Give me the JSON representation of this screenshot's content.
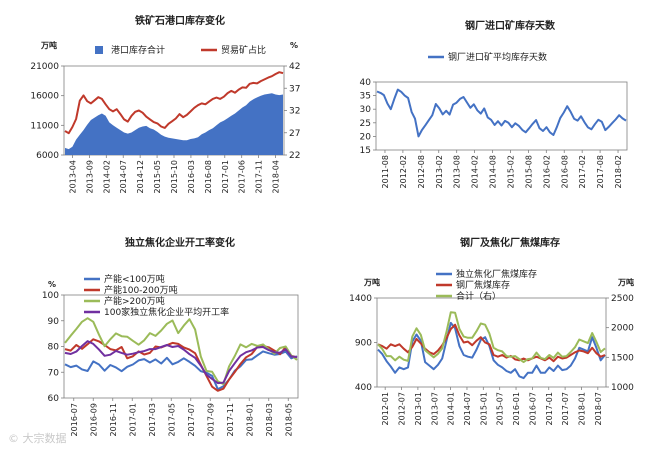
{
  "chart_data": [
    {
      "type": "area",
      "title": "铁矿石港口库存变化",
      "left_unit": "万吨",
      "right_unit": "%",
      "ylim": [
        6000,
        21000
      ],
      "y2lim": [
        22,
        42
      ],
      "yticks": [
        "21000",
        "16000",
        "11000",
        "6000"
      ],
      "y2ticks": [
        "42",
        "37",
        "32",
        "27",
        "22"
      ],
      "xticks": [
        "2013-04",
        "2013-09",
        "2014-02",
        "2014-07",
        "2014-12",
        "2015-05",
        "2015-10",
        "2016-03",
        "2016-08",
        "2017-01",
        "2017-06",
        "2017-11",
        "2018-04"
      ],
      "series": [
        {
          "name": "港口库存合计",
          "type": "area",
          "color": "#4472c4",
          "values": [
            7200,
            7000,
            7400,
            8600,
            9400,
            10200,
            11100,
            11900,
            12300,
            12700,
            13000,
            12600,
            11500,
            11000,
            10600,
            10200,
            9800,
            9600,
            9800,
            10200,
            10600,
            10800,
            10900,
            10500,
            10300,
            9900,
            9400,
            9100,
            8900,
            8800,
            8700,
            8600,
            8500,
            8500,
            8700,
            8800,
            9000,
            9500,
            9800,
            10200,
            10500,
            11000,
            11500,
            11800,
            12200,
            12600,
            13000,
            13500,
            14000,
            14400,
            15000,
            15400,
            15700,
            16000,
            16200,
            16300,
            16400,
            16200,
            16100,
            16200
          ]
        },
        {
          "name": "贸易矿占比",
          "type": "line",
          "color": "#c0392b",
          "axis": "right",
          "values": [
            27.4,
            26.9,
            28.3,
            30.1,
            34.2,
            35.4,
            34.1,
            33.6,
            34.3,
            35.0,
            34.6,
            33.4,
            32.3,
            31.8,
            32.3,
            31.2,
            30.0,
            29.5,
            30.8,
            31.7,
            32.0,
            31.5,
            30.6,
            30.0,
            29.4,
            29.1,
            28.4,
            28.1,
            29.0,
            29.6,
            30.2,
            31.2,
            30.5,
            31.0,
            31.8,
            32.6,
            33.2,
            33.6,
            33.4,
            34.0,
            34.6,
            34.9,
            34.6,
            35.1,
            35.9,
            36.4,
            36.0,
            36.7,
            37.2,
            37.1,
            38.0,
            38.2,
            38.1,
            38.6,
            39.0,
            39.4,
            39.7,
            40.2,
            40.6,
            40.4
          ]
        }
      ]
    },
    {
      "type": "line",
      "title": "钢厂进口矿库存天数",
      "ylim": [
        15,
        40
      ],
      "yticks": [
        "40",
        "35",
        "30",
        "25",
        "20",
        "15"
      ],
      "xticks": [
        "2011-08",
        "2012-02",
        "2012-08",
        "2013-02",
        "2013-08",
        "2014-02",
        "2014-08",
        "2015-02",
        "2015-08",
        "2016-02",
        "2016-08",
        "2017-02",
        "2017-08",
        "2018-02"
      ],
      "series": [
        {
          "name": "钢厂进口矿平均库存天数",
          "color": "#4472c4",
          "values": [
            36.5,
            36.0,
            35.2,
            32.1,
            30.0,
            33.8,
            37.2,
            36.4,
            35.0,
            34.1,
            29.0,
            26.5,
            20.0,
            22.4,
            24.1,
            26.0,
            27.8,
            31.9,
            30.3,
            28.1,
            29.4,
            28.0,
            31.7,
            32.4,
            33.8,
            34.5,
            32.5,
            30.5,
            31.8,
            29.6,
            28.4,
            30.3,
            27.0,
            26.1,
            24.2,
            25.6,
            24.0,
            25.7,
            25.0,
            23.4,
            24.8,
            23.9,
            22.4,
            21.5,
            23.0,
            24.6,
            26.0,
            23.0,
            22.0,
            23.4,
            21.5,
            20.5,
            23.4,
            26.8,
            28.8,
            31.1,
            29.0,
            26.5,
            25.8,
            27.4,
            25.2,
            23.3,
            22.6,
            24.5,
            26.1,
            25.4,
            22.3,
            23.5,
            24.9,
            26.2,
            27.8,
            26.6,
            25.8
          ]
        }
      ]
    },
    {
      "type": "line",
      "title": "独立焦化企业开工率变化",
      "left_unit": "%",
      "ylim": [
        60,
        100
      ],
      "yticks": [
        "100",
        "90",
        "80",
        "70",
        "60"
      ],
      "xticks": [
        "2016-07",
        "2016-09",
        "2016-11",
        "2017-01",
        "2017-03",
        "2017-05",
        "2017-07",
        "2017-09",
        "2017-11",
        "2018-01",
        "2018-03",
        "2018-05"
      ],
      "series": [
        {
          "name": "产能<100万吨",
          "color": "#4472c4",
          "values": [
            73.1,
            72.0,
            72.6,
            71.1,
            70.5,
            74.2,
            73.0,
            70.6,
            72.8,
            71.9,
            70.4,
            72.1,
            73.0,
            74.6,
            75.1,
            73.8,
            75.0,
            73.4,
            75.6,
            73.1,
            74.0,
            75.4,
            74.0,
            72.5,
            70.4,
            69.8,
            68.6,
            63.4,
            64.6,
            67.2,
            70.6,
            72.3,
            74.8,
            75.0,
            76.6,
            78.1,
            77.4,
            76.8,
            77.1,
            78.0,
            75.4,
            76.2
          ]
        },
        {
          "name": "产能100-200万吨",
          "color": "#c0392b",
          "values": [
            79.0,
            78.4,
            80.6,
            79.1,
            80.9,
            82.8,
            82.0,
            80.6,
            79.0,
            78.5,
            79.8,
            75.4,
            76.2,
            78.1,
            76.9,
            77.5,
            80.0,
            79.6,
            80.5,
            81.4,
            81.0,
            79.6,
            78.8,
            77.4,
            72.9,
            68.6,
            64.4,
            62.8,
            63.6,
            67.2,
            70.1,
            73.2,
            75.8,
            77.1,
            79.9,
            80.2,
            79.7,
            78.4,
            77.0,
            79.8,
            76.4,
            75.8
          ]
        },
        {
          "name": "产能>200万吨",
          "color": "#9bbb59",
          "values": [
            81.4,
            84.2,
            86.8,
            89.6,
            91.0,
            89.6,
            84.6,
            80.1,
            82.8,
            85.1,
            84.0,
            83.8,
            82.2,
            80.7,
            82.4,
            85.2,
            84.1,
            86.2,
            88.8,
            90.1,
            85.2,
            88.1,
            90.6,
            86.6,
            76.1,
            70.5,
            70.2,
            66.5,
            65.4,
            72.3,
            76.3,
            80.8,
            79.7,
            81.0,
            80.2,
            80.8,
            79.0,
            77.2,
            79.4,
            80.0,
            76.5,
            74.8
          ]
        },
        {
          "name": "100家独立焦化企业平均开工率",
          "color": "#7030a0",
          "values": [
            77.5,
            77.1,
            78.0,
            80.2,
            82.1,
            81.0,
            78.8,
            76.4,
            76.8,
            78.3,
            77.5,
            76.8,
            77.2,
            77.8,
            78.2,
            79.0,
            79.0,
            79.8,
            80.6,
            79.8,
            80.2,
            78.8,
            77.0,
            75.6,
            72.6,
            69.0,
            67.4,
            65.8,
            66.0,
            70.5,
            73.5,
            76.4,
            77.8,
            78.5,
            79.6,
            79.8,
            78.6,
            77.8,
            77.6,
            78.9,
            76.1,
            75.9
          ]
        }
      ]
    },
    {
      "type": "line",
      "title": "钢厂及焦化厂焦煤库存",
      "left_unit": "万吨",
      "right_unit": "万吨",
      "ylim": [
        400,
        1400
      ],
      "y2lim": [
        1000,
        2500
      ],
      "yticks": [
        "1400",
        "900",
        "400"
      ],
      "y2ticks": [
        "2500",
        "2000",
        "1500",
        "1000"
      ],
      "xticks": [
        "2012-01",
        "2012-07",
        "2013-01",
        "2013-07",
        "2014-01",
        "2014-07",
        "2015-01",
        "2015-07",
        "2016-01",
        "2016-07",
        "2017-01",
        "2017-07",
        "2018-01",
        "2018-07"
      ],
      "series": [
        {
          "name": "独立焦化厂焦煤库存",
          "color": "#4472c4",
          "values": [
            820,
            770,
            690,
            630,
            560,
            620,
            600,
            620,
            910,
            990,
            920,
            680,
            640,
            600,
            650,
            720,
            920,
            1120,
            1060,
            860,
            760,
            740,
            730,
            820,
            930,
            960,
            860,
            700,
            650,
            620,
            580,
            560,
            600,
            520,
            500,
            560,
            560,
            640,
            560,
            560,
            620,
            580,
            640,
            590,
            600,
            640,
            720,
            840,
            820,
            800,
            960,
            840,
            700,
            760
          ]
        },
        {
          "name": "钢厂焦煤库存",
          "color": "#c0392b",
          "values": [
            880,
            860,
            830,
            880,
            860,
            880,
            830,
            790,
            850,
            940,
            890,
            830,
            790,
            770,
            810,
            870,
            950,
            1050,
            1100,
            980,
            900,
            910,
            870,
            920,
            960,
            900,
            880,
            760,
            740,
            760,
            730,
            750,
            710,
            700,
            720,
            700,
            720,
            740,
            720,
            700,
            730,
            690,
            740,
            720,
            730,
            760,
            790,
            810,
            800,
            780,
            840,
            780,
            740,
            760
          ]
        },
        {
          "name": "合计（右）",
          "color": "#9bbb59",
          "axis": "right",
          "values": [
            1720,
            1640,
            1520,
            1520,
            1450,
            1510,
            1460,
            1440,
            1850,
            1990,
            1880,
            1620,
            1560,
            1500,
            1560,
            1650,
            1930,
            2260,
            2250,
            1980,
            1850,
            1830,
            1830,
            1940,
            2070,
            2050,
            1900,
            1660,
            1620,
            1600,
            1520,
            1510,
            1520,
            1470,
            1420,
            1470,
            1480,
            1580,
            1490,
            1470,
            1540,
            1490,
            1580,
            1510,
            1520,
            1590,
            1670,
            1800,
            1770,
            1740,
            1910,
            1760,
            1590,
            1650
          ]
        }
      ]
    }
  ]
}
